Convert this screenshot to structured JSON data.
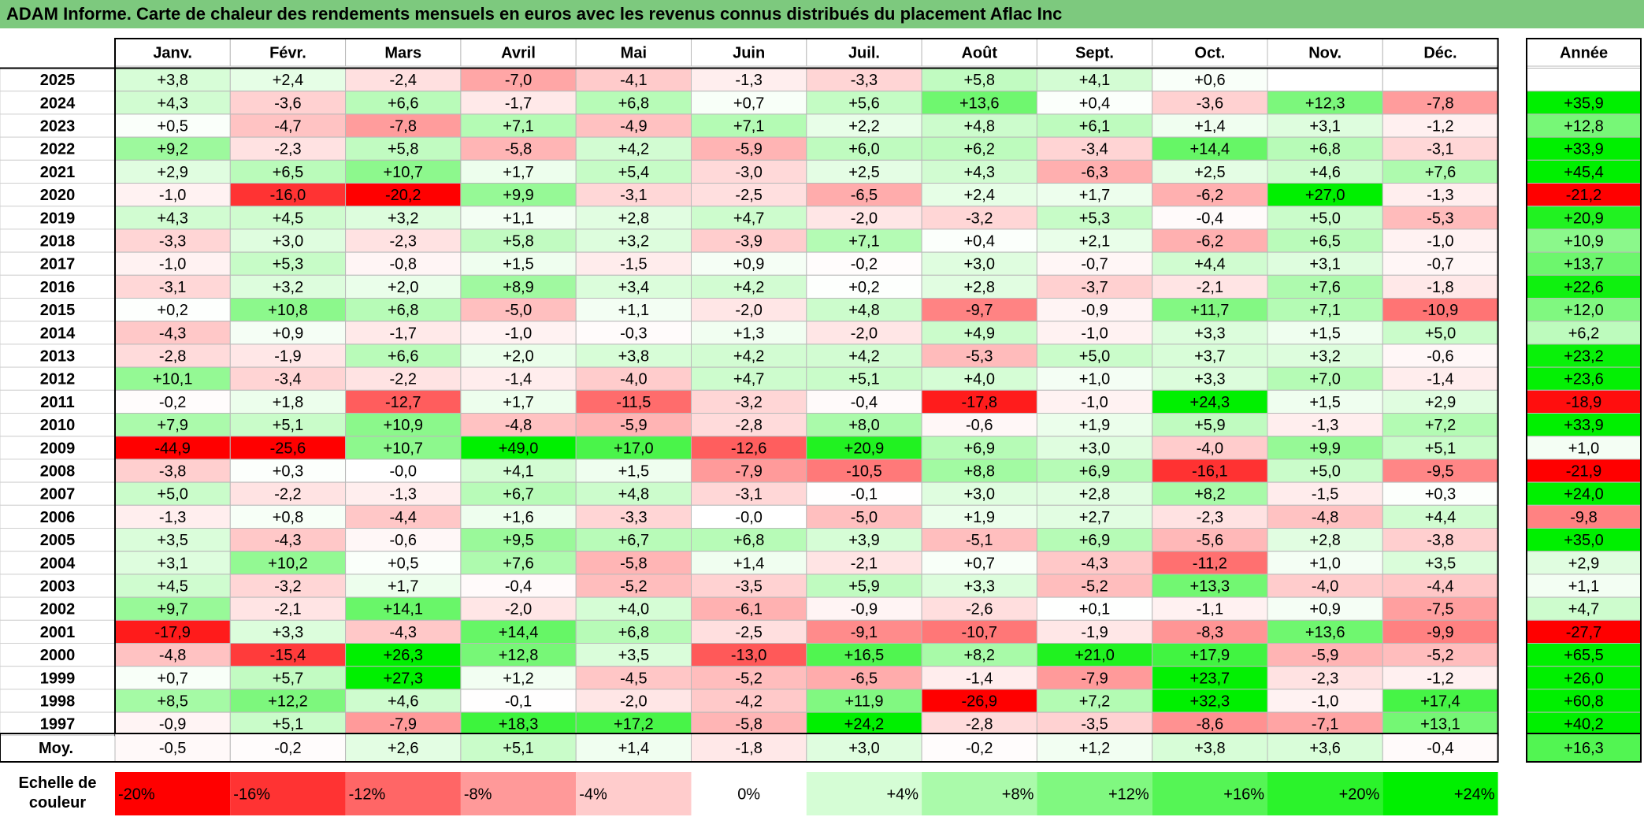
{
  "title": "ADAM Informe. Carte de chaleur des rendements mensuels en euros avec les revenus connus distribués du placement Aflac Inc",
  "chart_data": {
    "type": "heatmap",
    "columns": [
      "Janv.",
      "Févr.",
      "Mars",
      "Avril",
      "Mai",
      "Juin",
      "Juil.",
      "Août",
      "Sept.",
      "Oct.",
      "Nov.",
      "Déc."
    ],
    "year_column_label": "Année",
    "rows": [
      {
        "label": "2025",
        "values": [
          "+3,8",
          "+2,4",
          "-2,4",
          "-7,0",
          "-4,1",
          "-1,3",
          "-3,3",
          "+5,8",
          "+4,1",
          "+0,6",
          "",
          ""
        ],
        "year": ""
      },
      {
        "label": "2024",
        "values": [
          "+4,3",
          "-3,6",
          "+6,6",
          "-1,7",
          "+6,8",
          "+0,7",
          "+5,6",
          "+13,6",
          "+0,4",
          "-3,6",
          "+12,3",
          "-7,8"
        ],
        "year": "+35,9"
      },
      {
        "label": "2023",
        "values": [
          "+0,5",
          "-4,7",
          "-7,8",
          "+7,1",
          "-4,9",
          "+7,1",
          "+2,2",
          "+4,8",
          "+6,1",
          "+1,4",
          "+3,1",
          "-1,2"
        ],
        "year": "+12,8"
      },
      {
        "label": "2022",
        "values": [
          "+9,2",
          "-2,3",
          "+5,8",
          "-5,8",
          "+4,2",
          "-5,9",
          "+6,0",
          "+6,2",
          "-3,4",
          "+14,4",
          "+6,8",
          "-3,1"
        ],
        "year": "+33,9"
      },
      {
        "label": "2021",
        "values": [
          "+2,9",
          "+6,5",
          "+10,7",
          "+1,7",
          "+5,4",
          "-3,0",
          "+2,5",
          "+4,3",
          "-6,3",
          "+2,5",
          "+4,6",
          "+7,6"
        ],
        "year": "+45,4"
      },
      {
        "label": "2020",
        "values": [
          "-1,0",
          "-16,0",
          "-20,2",
          "+9,9",
          "-3,1",
          "-2,5",
          "-6,5",
          "+2,4",
          "+1,7",
          "-6,2",
          "+27,0",
          "-1,3"
        ],
        "year": "-21,2"
      },
      {
        "label": "2019",
        "values": [
          "+4,3",
          "+4,5",
          "+3,2",
          "+1,1",
          "+2,8",
          "+4,7",
          "-2,0",
          "-3,2",
          "+5,3",
          "-0,4",
          "+5,0",
          "-5,3"
        ],
        "year": "+20,9"
      },
      {
        "label": "2018",
        "values": [
          "-3,3",
          "+3,0",
          "-2,3",
          "+5,8",
          "+3,2",
          "-3,9",
          "+7,1",
          "+0,4",
          "+2,1",
          "-6,2",
          "+6,5",
          "-1,0"
        ],
        "year": "+10,9"
      },
      {
        "label": "2017",
        "values": [
          "-1,0",
          "+5,3",
          "-0,8",
          "+1,5",
          "-1,5",
          "+0,9",
          "-0,2",
          "+3,0",
          "-0,7",
          "+4,4",
          "+3,1",
          "-0,7"
        ],
        "year": "+13,7"
      },
      {
        "label": "2016",
        "values": [
          "-3,1",
          "+3,2",
          "+2,0",
          "+8,9",
          "+3,4",
          "+4,2",
          "+0,2",
          "+2,8",
          "-3,7",
          "-2,1",
          "+7,6",
          "-1,8"
        ],
        "year": "+22,6"
      },
      {
        "label": "2015",
        "values": [
          "+0,2",
          "+10,8",
          "+6,8",
          "-5,0",
          "+1,1",
          "-2,0",
          "+4,8",
          "-9,7",
          "-0,9",
          "+11,7",
          "+7,1",
          "-10,9"
        ],
        "year": "+12,0"
      },
      {
        "label": "2014",
        "values": [
          "-4,3",
          "+0,9",
          "-1,7",
          "-1,0",
          "-0,3",
          "+1,3",
          "-2,0",
          "+4,9",
          "-1,0",
          "+3,3",
          "+1,5",
          "+5,0"
        ],
        "year": "+6,2"
      },
      {
        "label": "2013",
        "values": [
          "-2,8",
          "-1,9",
          "+6,6",
          "+2,0",
          "+3,8",
          "+4,2",
          "+4,2",
          "-5,3",
          "+5,0",
          "+3,7",
          "+3,2",
          "-0,6"
        ],
        "year": "+23,2"
      },
      {
        "label": "2012",
        "values": [
          "+10,1",
          "-3,4",
          "-2,2",
          "-1,4",
          "-4,0",
          "+4,7",
          "+5,1",
          "+4,0",
          "+1,0",
          "+3,3",
          "+7,0",
          "-1,4"
        ],
        "year": "+23,6"
      },
      {
        "label": "2011",
        "values": [
          "-0,2",
          "+1,8",
          "-12,7",
          "+1,7",
          "-11,5",
          "-3,2",
          "-0,4",
          "-17,8",
          "-1,0",
          "+24,3",
          "+1,5",
          "+2,9"
        ],
        "year": "-18,9"
      },
      {
        "label": "2010",
        "values": [
          "+7,9",
          "+5,1",
          "+10,9",
          "-4,8",
          "-5,9",
          "-2,8",
          "+8,0",
          "-0,6",
          "+1,9",
          "+5,9",
          "-1,3",
          "+7,2"
        ],
        "year": "+33,9"
      },
      {
        "label": "2009",
        "values": [
          "-44,9",
          "-25,6",
          "+10,7",
          "+49,0",
          "+17,0",
          "-12,6",
          "+20,9",
          "+6,9",
          "+3,0",
          "-4,0",
          "+9,9",
          "+5,1"
        ],
        "year": "+1,0"
      },
      {
        "label": "2008",
        "values": [
          "-3,8",
          "+0,3",
          "-0,0",
          "+4,1",
          "+1,5",
          "-7,9",
          "-10,5",
          "+8,8",
          "+6,9",
          "-16,1",
          "+5,0",
          "-9,5"
        ],
        "year": "-21,9"
      },
      {
        "label": "2007",
        "values": [
          "+5,0",
          "-2,2",
          "-1,3",
          "+6,7",
          "+4,8",
          "-3,1",
          "-0,1",
          "+3,0",
          "+2,8",
          "+8,2",
          "-1,5",
          "+0,3"
        ],
        "year": "+24,0"
      },
      {
        "label": "2006",
        "values": [
          "-1,3",
          "+0,8",
          "-4,4",
          "+1,6",
          "-3,3",
          "-0,0",
          "-5,0",
          "+1,9",
          "+2,7",
          "-2,3",
          "-4,8",
          "+4,4"
        ],
        "year": "-9,8"
      },
      {
        "label": "2005",
        "values": [
          "+3,5",
          "-4,3",
          "-0,6",
          "+9,5",
          "+6,7",
          "+6,8",
          "+3,9",
          "-5,1",
          "+6,9",
          "-5,6",
          "+2,8",
          "-3,8"
        ],
        "year": "+35,0"
      },
      {
        "label": "2004",
        "values": [
          "+3,1",
          "+10,2",
          "+0,5",
          "+7,6",
          "-5,8",
          "+1,4",
          "-2,1",
          "+0,7",
          "-4,3",
          "-11,2",
          "+1,0",
          "+3,5"
        ],
        "year": "+2,9"
      },
      {
        "label": "2003",
        "values": [
          "+4,5",
          "-3,2",
          "+1,7",
          "-0,4",
          "-5,2",
          "-3,5",
          "+5,9",
          "+3,3",
          "-5,2",
          "+13,3",
          "-4,0",
          "-4,4"
        ],
        "year": "+1,1"
      },
      {
        "label": "2002",
        "values": [
          "+9,7",
          "-2,1",
          "+14,1",
          "-2,0",
          "+4,0",
          "-6,1",
          "-0,9",
          "-2,6",
          "+0,1",
          "-1,1",
          "+0,9",
          "-7,5"
        ],
        "year": "+4,7"
      },
      {
        "label": "2001",
        "values": [
          "-17,9",
          "+3,3",
          "-4,3",
          "+14,4",
          "+6,8",
          "-2,5",
          "-9,1",
          "-10,7",
          "-1,9",
          "-8,3",
          "+13,6",
          "-9,9"
        ],
        "year": "-27,7"
      },
      {
        "label": "2000",
        "values": [
          "-4,8",
          "-15,4",
          "+26,3",
          "+12,8",
          "+3,5",
          "-13,0",
          "+16,5",
          "+8,2",
          "+21,0",
          "+17,9",
          "-5,9",
          "-5,2"
        ],
        "year": "+65,5"
      },
      {
        "label": "1999",
        "values": [
          "+0,7",
          "+5,7",
          "+27,3",
          "+1,2",
          "-4,5",
          "-5,2",
          "-6,5",
          "-1,4",
          "-7,9",
          "+23,7",
          "-2,3",
          "-1,2"
        ],
        "year": "+26,0"
      },
      {
        "label": "1998",
        "values": [
          "+8,5",
          "+12,2",
          "+4,6",
          "-0,1",
          "-2,0",
          "-4,2",
          "+11,9",
          "-26,9",
          "+7,2",
          "+32,3",
          "-1,0",
          "+17,4"
        ],
        "year": "+60,8"
      },
      {
        "label": "1997",
        "values": [
          "-0,9",
          "+5,1",
          "-7,9",
          "+18,3",
          "+17,2",
          "-5,8",
          "+24,2",
          "-2,8",
          "-3,5",
          "-8,6",
          "-7,1",
          "+13,1"
        ],
        "year": "+40,2"
      }
    ],
    "average": {
      "label": "Moy.",
      "values": [
        "-0,5",
        "-0,2",
        "+2,6",
        "+5,1",
        "+1,4",
        "-1,8",
        "+3,0",
        "-0,2",
        "+1,2",
        "+3,8",
        "+3,6",
        "-0,4"
      ],
      "year": "+16,3"
    },
    "scale": {
      "label_line1": "Echelle de",
      "label_line2": "couleur",
      "stops": [
        {
          "label": "-20%",
          "value": -20
        },
        {
          "label": "-16%",
          "value": -16
        },
        {
          "label": "-12%",
          "value": -12
        },
        {
          "label": "-8%",
          "value": -8
        },
        {
          "label": "-4%",
          "value": -4
        },
        {
          "label": "0%",
          "value": 0
        },
        {
          "label": "+4%",
          "value": 4
        },
        {
          "label": "+8%",
          "value": 8
        },
        {
          "label": "+12%",
          "value": 12
        },
        {
          "label": "+16%",
          "value": 16
        },
        {
          "label": "+20%",
          "value": 20
        },
        {
          "label": "+24%",
          "value": 24
        }
      ]
    },
    "colors": {
      "max_negative": "#ff0000",
      "max_positive": "#00f000",
      "zero": "#ffffff",
      "title_background": "#7dc97e"
    }
  }
}
